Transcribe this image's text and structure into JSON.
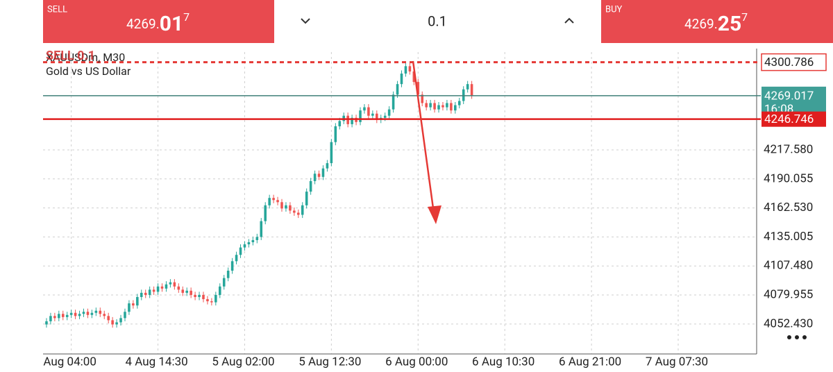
{
  "top_bar": {
    "sell": {
      "label": "SELL",
      "price_main": "4269.",
      "price_big": "01",
      "price_sup": "7"
    },
    "volume": "0.1",
    "buy": {
      "label": "BUY",
      "price_main": "4269.",
      "price_big": "25",
      "price_sup": "7"
    }
  },
  "chart_data": {
    "type": "candlestick",
    "symbol": "XAUUSDm, M30",
    "subtitle": "Gold vs US Dollar",
    "order_label": "SELL 0.1",
    "up_color": "#26a69a",
    "down_color": "#ef5350",
    "grid": true,
    "xlim": [
      -0.5,
      172
    ],
    "xticks": [
      {
        "value": 6,
        "label": "Aug 04:00"
      },
      {
        "value": 27,
        "label": "4 Aug 14:30"
      },
      {
        "value": 48,
        "label": "5 Aug 02:00"
      },
      {
        "value": 69,
        "label": "5 Aug 12:30"
      },
      {
        "value": 90,
        "label": "6 Aug 00:00"
      },
      {
        "value": 111,
        "label": "6 Aug 10:30"
      },
      {
        "value": 132,
        "label": "6 Aug 21:00"
      },
      {
        "value": 153,
        "label": "7 Aug 07:30"
      }
    ],
    "ylim": [
      4024.0,
      4310.4
    ],
    "yticks": [
      {
        "value": 4052.43,
        "label": "4052.430"
      },
      {
        "value": 4079.955,
        "label": "4079.955"
      },
      {
        "value": 4107.48,
        "label": "4107.480"
      },
      {
        "value": 4135.005,
        "label": "4135.005"
      },
      {
        "value": 4162.53,
        "label": "4162.530"
      },
      {
        "value": 4190.055,
        "label": "4190.055"
      },
      {
        "value": 4217.58,
        "label": "4217.580"
      }
    ],
    "order_line": 4300.786,
    "bid_line": 4269.017,
    "bid_time": "16:08",
    "stop_line": 4246.746,
    "candles": {
      "open": [
        4052,
        4055,
        4060,
        4058,
        4062,
        4059,
        4061,
        4063,
        4060,
        4062,
        4064,
        4061,
        4063,
        4065,
        4062,
        4060,
        4056,
        4052,
        4054,
        4058,
        4064,
        4072,
        4070,
        4078,
        4082,
        4080,
        4085,
        4083,
        4088,
        4086,
        4090,
        4092,
        4088,
        4085,
        4082,
        4084,
        4080,
        4078,
        4080,
        4076,
        4074,
        4073,
        4080,
        4088,
        4096,
        4103,
        4112,
        4118,
        4125,
        4128,
        4130,
        4132,
        4135,
        4150,
        4165,
        4172,
        4170,
        4168,
        4162,
        4165,
        4160,
        4158,
        4156,
        4165,
        4178,
        4188,
        4195,
        4192,
        4200,
        4205,
        4225,
        4240,
        4245,
        4250,
        4242,
        4248,
        4244,
        4255,
        4258,
        4250,
        4252,
        4246,
        4248,
        4250,
        4256,
        4270,
        4280,
        4290,
        4297,
        4292,
        4282,
        4270,
        4262,
        4258,
        4262,
        4256,
        4260,
        4258,
        4262,
        4255,
        4260,
        4264,
        4275,
        4280
      ],
      "high": [
        4058,
        4063,
        4063,
        4065,
        4065,
        4064,
        4066,
        4066,
        4065,
        4067,
        4067,
        4066,
        4068,
        4068,
        4065,
        4063,
        4059,
        4057,
        4061,
        4067,
        4075,
        4075,
        4081,
        4085,
        4085,
        4088,
        4088,
        4091,
        4091,
        4093,
        4095,
        4095,
        4091,
        4088,
        4087,
        4087,
        4083,
        4083,
        4083,
        4079,
        4077,
        4083,
        4091,
        4099,
        4106,
        4115,
        4121,
        4128,
        4131,
        4133,
        4135,
        4138,
        4153,
        4168,
        4175,
        4175,
        4173,
        4171,
        4168,
        4168,
        4163,
        4161,
        4168,
        4181,
        4191,
        4198,
        4198,
        4203,
        4208,
        4228,
        4243,
        4248,
        4253,
        4253,
        4251,
        4251,
        4258,
        4261,
        4261,
        4255,
        4255,
        4251,
        4253,
        4259,
        4273,
        4283,
        4293,
        4300,
        4300,
        4295,
        4285,
        4273,
        4265,
        4265,
        4265,
        4263,
        4263,
        4265,
        4265,
        4263,
        4267,
        4278,
        4283,
        4283
      ],
      "low": [
        4049,
        4052,
        4055,
        4055,
        4056,
        4056,
        4058,
        4057,
        4057,
        4059,
        4058,
        4058,
        4060,
        4059,
        4057,
        4053,
        4049,
        4049,
        4051,
        4055,
        4061,
        4067,
        4067,
        4075,
        4077,
        4077,
        4080,
        4080,
        4083,
        4083,
        4087,
        4085,
        4082,
        4079,
        4079,
        4077,
        4075,
        4075,
        4073,
        4071,
        4070,
        4070,
        4077,
        4085,
        4093,
        4100,
        4109,
        4115,
        4122,
        4125,
        4127,
        4129,
        4132,
        4147,
        4162,
        4167,
        4165,
        4159,
        4159,
        4157,
        4155,
        4153,
        4153,
        4162,
        4175,
        4185,
        4189,
        4189,
        4197,
        4202,
        4222,
        4237,
        4242,
        4239,
        4239,
        4241,
        4241,
        4252,
        4247,
        4247,
        4243,
        4243,
        4245,
        4247,
        4253,
        4267,
        4277,
        4287,
        4289,
        4279,
        4267,
        4259,
        4255,
        4255,
        4253,
        4253,
        4255,
        4255,
        4252,
        4252,
        4257,
        4261,
        4272,
        4266
      ],
      "close": [
        4055,
        4060,
        4058,
        4062,
        4059,
        4061,
        4063,
        4060,
        4062,
        4064,
        4061,
        4063,
        4065,
        4062,
        4060,
        4056,
        4052,
        4054,
        4058,
        4064,
        4072,
        4070,
        4078,
        4082,
        4080,
        4085,
        4083,
        4088,
        4086,
        4090,
        4092,
        4088,
        4085,
        4082,
        4084,
        4080,
        4078,
        4080,
        4076,
        4074,
        4073,
        4080,
        4088,
        4096,
        4103,
        4112,
        4118,
        4125,
        4128,
        4130,
        4132,
        4135,
        4150,
        4165,
        4172,
        4170,
        4168,
        4162,
        4165,
        4160,
        4158,
        4156,
        4165,
        4178,
        4188,
        4195,
        4192,
        4200,
        4205,
        4225,
        4240,
        4245,
        4250,
        4242,
        4248,
        4244,
        4255,
        4258,
        4250,
        4252,
        4246,
        4248,
        4250,
        4256,
        4270,
        4280,
        4290,
        4297,
        4292,
        4282,
        4270,
        4262,
        4258,
        4262,
        4256,
        4260,
        4258,
        4262,
        4255,
        4260,
        4264,
        4275,
        4280,
        4269
      ]
    }
  }
}
